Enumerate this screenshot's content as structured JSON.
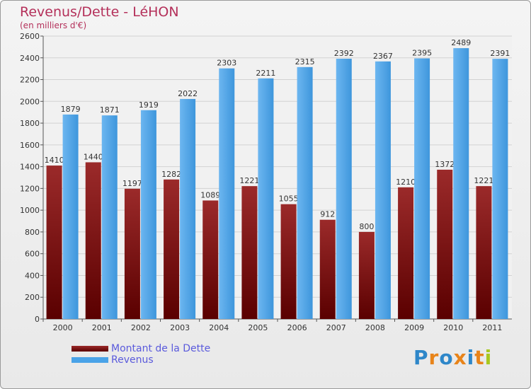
{
  "header": {
    "title": "Revenus/Dette - LéHON",
    "subtitle": "(en milliers d'€)"
  },
  "colors": {
    "dette": "#7a1010",
    "revenus": "#4aa3e8"
  },
  "legend": {
    "items": [
      {
        "label": "Montant de la Dette",
        "color": "#7a1010"
      },
      {
        "label": "Revenus",
        "color": "#4aa3e8"
      }
    ]
  },
  "logo": {
    "text": "Proxiti",
    "letter_colors": [
      "#2e87c9",
      "#e8841a",
      "#2e87c9",
      "#e8841a",
      "#2e87c9",
      "#e8841a",
      "#a8c81e"
    ]
  },
  "chart_data": {
    "type": "bar",
    "title": "Revenus/Dette - LéHON",
    "subtitle": "(en milliers d'€)",
    "xlabel": "",
    "ylabel": "",
    "ylim": [
      0,
      2600
    ],
    "yticks": [
      0,
      200,
      400,
      600,
      800,
      1000,
      1200,
      1400,
      1600,
      1800,
      2000,
      2200,
      2400,
      2600
    ],
    "grid": true,
    "legend_position": "bottom-left",
    "categories": [
      "2000",
      "2001",
      "2002",
      "2003",
      "2004",
      "2005",
      "2006",
      "2007",
      "2008",
      "2009",
      "2010",
      "2011"
    ],
    "series": [
      {
        "name": "Montant de la Dette",
        "values": [
          1410,
          1440,
          1197,
          1282,
          1089,
          1221,
          1055,
          912,
          800,
          1210,
          1372,
          1221
        ],
        "labels": [
          "1410",
          "1440",
          "1197",
          "1282",
          "1089",
          "1221",
          "1055",
          "912",
          "800",
          "1210",
          "1372",
          "1221"
        ]
      },
      {
        "name": "Revenus",
        "values": [
          1879,
          1871,
          1919,
          2022,
          2303,
          2211,
          2315,
          2392,
          2367,
          2395,
          2489,
          2391
        ],
        "labels": [
          "1879",
          "1871",
          "1919",
          "2022",
          "2303",
          "2211",
          "2315",
          "2392",
          "2367",
          "2395",
          "2489",
          "2391"
        ]
      }
    ]
  }
}
